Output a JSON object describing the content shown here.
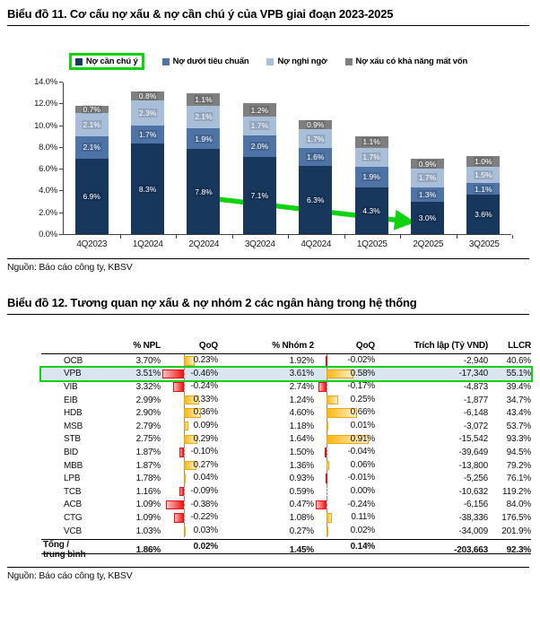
{
  "page": {
    "title1": "Biểu đồ 11. Cơ cấu nợ xấu & nợ cần chú ý của VPB giai đoạn 2023-2025",
    "source1": "Nguồn: Báo cáo công ty, KBSV",
    "title2": "Biểu đồ 12. Tương quan nợ xấu & nợ nhóm 2 các ngân hàng trong hệ thống",
    "source2": "Nguồn: Báo cáo công ty, KBSV"
  },
  "colors": {
    "accent_green": "#0ed30e",
    "series_dark_navy": "#17375d",
    "series_medium_blue": "#4e73a6",
    "series_light_blue": "#a9bfd9",
    "series_gray": "#7f7f7f",
    "highlight_row_bg": "#dbe5f1",
    "databar_negative": "#f81414",
    "databar_positive": "#fcb813"
  },
  "chart_data": [
    {
      "type": "bar",
      "stacked": true,
      "title": "Biểu đồ 11. Cơ cấu nợ xấu & nợ cần chú ý của VPB giai đoạn 2023-2025",
      "categories": [
        "4Q2023",
        "1Q2024",
        "2Q2024",
        "3Q2024",
        "4Q2024",
        "1Q2025",
        "2Q2025",
        "3Q2025"
      ],
      "series": [
        {
          "name": "Nợ cần chú ý",
          "color": "#17375d",
          "values": [
            6.9,
            8.3,
            7.8,
            7.1,
            6.3,
            4.3,
            3.0,
            3.6
          ]
        },
        {
          "name": "Nợ dưới tiêu chuẩn",
          "color": "#4e73a6",
          "values": [
            2.1,
            1.7,
            1.9,
            2.0,
            1.6,
            1.9,
            1.3,
            1.1
          ]
        },
        {
          "name": "Nợ nghi ngờ",
          "color": "#a9bfd9",
          "values": [
            2.1,
            2.3,
            2.1,
            1.7,
            1.7,
            1.7,
            1.7,
            1.5
          ]
        },
        {
          "name": "Nợ xấu có khả năng mất vốn",
          "color": "#7f7f7f",
          "values": [
            0.7,
            0.8,
            1.1,
            1.2,
            0.9,
            1.1,
            0.9,
            1.0
          ]
        }
      ],
      "xlabel": "",
      "ylabel": "",
      "ylim": [
        0,
        14
      ],
      "y_tick_labels": [
        "0.0%",
        "2.0%",
        "4.0%",
        "6.0%",
        "8.0%",
        "10.0%",
        "12.0%",
        "14.0%"
      ],
      "gridlines": false,
      "legend_position": "top",
      "annotations": [
        "green highlight box around legend item 'Nợ cần chú ý'",
        "green arrow sloping down from 2Q2024 toward the 3.0% value of 2Q2025"
      ]
    },
    {
      "type": "table",
      "title": "Biểu đồ 12. Tương quan nợ xấu & nợ nhóm 2 các ngân hàng trong hệ thống",
      "columns": [
        "",
        "% NPL",
        "QoQ",
        "% Nhóm 2",
        "QoQ",
        "Trích lập (Tỷ VND)",
        "LLCR"
      ],
      "rows": [
        {
          "bank": "OCB",
          "npl": "3.70%",
          "qoq": "0.23%",
          "nhom2": "1.92%",
          "qoq2": "-0.02%",
          "trich_lap": "-2,940",
          "llcr": "40.6%",
          "highlight": false
        },
        {
          "bank": "VPB",
          "npl": "3.51%",
          "qoq": "-0.46%",
          "nhom2": "3.61%",
          "qoq2": "0.58%",
          "trich_lap": "-17,340",
          "llcr": "55.1%",
          "highlight": true
        },
        {
          "bank": "VIB",
          "npl": "3.32%",
          "qoq": "-0.24%",
          "nhom2": "2.74%",
          "qoq2": "-0.17%",
          "trich_lap": "-4,873",
          "llcr": "39.4%",
          "highlight": false
        },
        {
          "bank": "EIB",
          "npl": "2.99%",
          "qoq": "0.33%",
          "nhom2": "1.24%",
          "qoq2": "0.25%",
          "trich_lap": "-1,877",
          "llcr": "34.7%",
          "highlight": false
        },
        {
          "bank": "HDB",
          "npl": "2.90%",
          "qoq": "0.36%",
          "nhom2": "4.60%",
          "qoq2": "0.66%",
          "trich_lap": "-6,148",
          "llcr": "43.4%",
          "highlight": false
        },
        {
          "bank": "MSB",
          "npl": "2.79%",
          "qoq": "0.09%",
          "nhom2": "1.18%",
          "qoq2": "0.01%",
          "trich_lap": "-3,072",
          "llcr": "53.7%",
          "highlight": false
        },
        {
          "bank": "STB",
          "npl": "2.75%",
          "qoq": "0.29%",
          "nhom2": "1.64%",
          "qoq2": "0.91%",
          "trich_lap": "-15,542",
          "llcr": "93.3%",
          "highlight": false
        },
        {
          "bank": "BID",
          "npl": "1.87%",
          "qoq": "-0.10%",
          "nhom2": "1.50%",
          "qoq2": "-0.04%",
          "trich_lap": "-39,649",
          "llcr": "94.5%",
          "highlight": false
        },
        {
          "bank": "MBB",
          "npl": "1.87%",
          "qoq": "0.27%",
          "nhom2": "1.36%",
          "qoq2": "0.06%",
          "trich_lap": "-13,800",
          "llcr": "79.2%",
          "highlight": false
        },
        {
          "bank": "LPB",
          "npl": "1.78%",
          "qoq": "0.04%",
          "nhom2": "0.93%",
          "qoq2": "-0.01%",
          "trich_lap": "-5,256",
          "llcr": "76.1%",
          "highlight": false
        },
        {
          "bank": "TCB",
          "npl": "1.16%",
          "qoq": "-0.09%",
          "nhom2": "0.59%",
          "qoq2": "0.00%",
          "trich_lap": "-10,632",
          "llcr": "119.2%",
          "highlight": false
        },
        {
          "bank": "ACB",
          "npl": "1.09%",
          "qoq": "-0.38%",
          "nhom2": "0.47%",
          "qoq2": "-0.24%",
          "trich_lap": "-6,156",
          "llcr": "84.0%",
          "highlight": false
        },
        {
          "bank": "CTG",
          "npl": "1.09%",
          "qoq": "-0.22%",
          "nhom2": "1.08%",
          "qoq2": "0.11%",
          "trich_lap": "-38,336",
          "llcr": "176.5%",
          "highlight": false
        },
        {
          "bank": "VCB",
          "npl": "1.03%",
          "qoq": "0.03%",
          "nhom2": "0.27%",
          "qoq2": "0.02%",
          "trich_lap": "-34,009",
          "llcr": "201.9%",
          "highlight": false
        }
      ],
      "total_row": {
        "bank": "Tổng / trung bình",
        "npl": "1.86%",
        "qoq": "0.02%",
        "nhom2": "1.45%",
        "qoq2": "0.14%",
        "trich_lap": "-203,663",
        "llcr": "92.3%"
      }
    }
  ]
}
